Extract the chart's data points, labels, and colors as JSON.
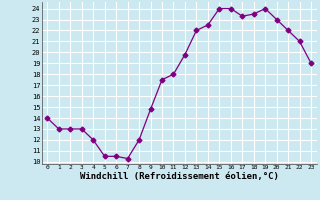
{
  "x": [
    0,
    1,
    2,
    3,
    4,
    5,
    6,
    7,
    8,
    9,
    10,
    11,
    12,
    13,
    14,
    15,
    16,
    17,
    18,
    19,
    20,
    21,
    22,
    23
  ],
  "y": [
    14,
    13,
    13,
    13,
    12,
    10.5,
    10.5,
    10.3,
    12,
    14.8,
    17.5,
    18,
    19.8,
    22,
    22.5,
    24,
    24,
    23.3,
    23.5,
    24,
    23,
    22,
    21,
    19
  ],
  "line_color": "#800080",
  "marker": "D",
  "marker_size": 2.5,
  "bg_color": "#cce8f0",
  "grid_color": "#ffffff",
  "xlabel": "Windchill (Refroidissement éolien,°C)",
  "yticks": [
    10,
    11,
    12,
    13,
    14,
    15,
    16,
    17,
    18,
    19,
    20,
    21,
    22,
    23,
    24
  ],
  "xticks": [
    0,
    1,
    2,
    3,
    4,
    5,
    6,
    7,
    8,
    9,
    10,
    11,
    12,
    13,
    14,
    15,
    16,
    17,
    18,
    19,
    20,
    21,
    22,
    23
  ],
  "ylim": [
    9.8,
    24.6
  ],
  "xlim": [
    -0.5,
    23.5
  ]
}
